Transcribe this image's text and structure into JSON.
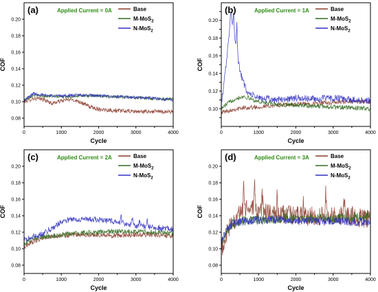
{
  "colors": {
    "base": "#8a3a2a",
    "m_mos2": "#2f6b1e",
    "n_mos2": "#3030c0",
    "annotation": "#2d8a12"
  },
  "chart_data": [
    {
      "type": "line",
      "label": "(a)",
      "annotation": "Applied Current = 0A",
      "xlabel": "Cycle",
      "ylabel": "COF",
      "xlim": [
        0,
        4000
      ],
      "ylim": [
        0.07,
        0.22
      ],
      "xticks": [
        0,
        1000,
        2000,
        3000,
        4000
      ],
      "yticks": [
        0.08,
        0.1,
        0.12,
        0.14,
        0.16,
        0.18,
        0.2
      ],
      "ytick_labels": [
        "0.08",
        "0.10",
        "0.12",
        "0.14",
        "0.16",
        "0.18",
        "0.20"
      ],
      "legend_position": "top-right",
      "series": [
        {
          "name": "Base",
          "sub": "",
          "x": [
            0,
            250,
            500,
            750,
            1000,
            1250,
            1500,
            1750,
            2000,
            2500,
            3000,
            3500,
            4000
          ],
          "y": [
            0.1,
            0.104,
            0.103,
            0.098,
            0.101,
            0.103,
            0.1,
            0.094,
            0.091,
            0.089,
            0.088,
            0.088,
            0.088
          ],
          "noise": 0.0025,
          "spikes": []
        },
        {
          "name": "M-MoS",
          "sub": "2",
          "x": [
            0,
            250,
            500,
            1000,
            1500,
            2000,
            2500,
            3000,
            3500,
            4000
          ],
          "y": [
            0.102,
            0.108,
            0.107,
            0.106,
            0.107,
            0.107,
            0.106,
            0.105,
            0.104,
            0.103
          ],
          "noise": 0.0018,
          "spikes": []
        },
        {
          "name": "N-MoS",
          "sub": "2",
          "x": [
            0,
            250,
            500,
            1000,
            1500,
            2000,
            2500,
            3000,
            3500,
            4000
          ],
          "y": [
            0.101,
            0.11,
            0.108,
            0.107,
            0.108,
            0.107,
            0.106,
            0.105,
            0.104,
            0.102
          ],
          "noise": 0.002,
          "spikes": []
        }
      ]
    },
    {
      "type": "line",
      "label": "(b)",
      "annotation": "Applied Current = 1A",
      "xlabel": "Cycle",
      "ylabel": "COF",
      "xlim": [
        0,
        4000
      ],
      "ylim": [
        0.08,
        0.22
      ],
      "xticks": [
        0,
        1000,
        2000,
        3000,
        4000
      ],
      "yticks": [
        0.09,
        0.1,
        0.11,
        0.12,
        0.13,
        0.14,
        0.15,
        0.16,
        0.17,
        0.18,
        0.19,
        0.2,
        0.21
      ],
      "ytick_labels": [
        "",
        "0.10",
        "",
        "0.12",
        "",
        "0.14",
        "",
        "0.16",
        "",
        "0.18",
        "",
        "0.20",
        ""
      ],
      "legend_position": "top-right",
      "series": [
        {
          "name": "Base",
          "sub": "",
          "x": [
            0,
            300,
            600,
            1000,
            1500,
            2000,
            2500,
            3000,
            3500,
            4000
          ],
          "y": [
            0.096,
            0.099,
            0.101,
            0.102,
            0.104,
            0.105,
            0.106,
            0.107,
            0.108,
            0.108
          ],
          "noise": 0.0025,
          "spikes": []
        },
        {
          "name": "M-MoS",
          "sub": "2",
          "x": [
            0,
            200,
            400,
            600,
            800,
            1000,
            1500,
            2000,
            2500,
            3000,
            3500,
            4000
          ],
          "y": [
            0.1,
            0.107,
            0.112,
            0.114,
            0.111,
            0.108,
            0.105,
            0.104,
            0.103,
            0.102,
            0.101,
            0.1
          ],
          "noise": 0.0025,
          "spikes": []
        },
        {
          "name": "N-MoS",
          "sub": "2",
          "x": [
            0,
            100,
            200,
            250,
            300,
            350,
            400,
            450,
            550,
            700,
            1000,
            1500,
            2000,
            2500,
            3000,
            3500,
            4000
          ],
          "y": [
            0.104,
            0.14,
            0.18,
            0.2,
            0.195,
            0.185,
            0.17,
            0.15,
            0.135,
            0.118,
            0.112,
            0.11,
            0.112,
            0.111,
            0.112,
            0.11,
            0.109
          ],
          "noise": 0.004,
          "spikes": [
            [
              260,
              0.213
            ],
            [
              330,
              0.21
            ],
            [
              420,
              0.2
            ],
            [
              470,
              0.16
            ]
          ]
        }
      ]
    },
    {
      "type": "line",
      "label": "(c)",
      "annotation": "Applied Current = 2A",
      "xlabel": "Cycle",
      "ylabel": "COF",
      "xlim": [
        0,
        4000
      ],
      "ylim": [
        0.07,
        0.22
      ],
      "xticks": [
        0,
        1000,
        2000,
        3000,
        4000
      ],
      "yticks": [
        0.08,
        0.1,
        0.12,
        0.14,
        0.16,
        0.18,
        0.2
      ],
      "ytick_labels": [
        "0.08",
        "0.10",
        "0.12",
        "0.14",
        "0.16",
        "0.18",
        "0.20"
      ],
      "legend_position": "top-right",
      "series": [
        {
          "name": "Base",
          "sub": "",
          "x": [
            0,
            200,
            500,
            1000,
            1500,
            2000,
            2500,
            3000,
            3500,
            4000
          ],
          "y": [
            0.102,
            0.108,
            0.113,
            0.116,
            0.117,
            0.117,
            0.116,
            0.117,
            0.117,
            0.116
          ],
          "noise": 0.003,
          "spikes": []
        },
        {
          "name": "M-MoS",
          "sub": "2",
          "x": [
            0,
            200,
            500,
            1000,
            1500,
            2000,
            2500,
            3000,
            3500,
            4000
          ],
          "y": [
            0.106,
            0.111,
            0.114,
            0.117,
            0.119,
            0.12,
            0.121,
            0.121,
            0.12,
            0.119
          ],
          "noise": 0.003,
          "spikes": []
        },
        {
          "name": "N-MoS",
          "sub": "2",
          "x": [
            0,
            200,
            500,
            800,
            1000,
            1200,
            1500,
            2000,
            2500,
            3000,
            3500,
            4000
          ],
          "y": [
            0.11,
            0.114,
            0.118,
            0.126,
            0.133,
            0.135,
            0.136,
            0.135,
            0.133,
            0.128,
            0.126,
            0.124
          ],
          "noise": 0.0035,
          "spikes": [
            [
              2600,
              0.14
            ],
            [
              2900,
              0.142
            ],
            [
              3100,
              0.138
            ],
            [
              3300,
              0.135
            ]
          ]
        }
      ]
    },
    {
      "type": "line",
      "label": "(d)",
      "annotation": "Applied Current = 3A",
      "xlabel": "Cycle",
      "ylabel": "COF",
      "xlim": [
        0,
        4000
      ],
      "ylim": [
        0.07,
        0.22
      ],
      "xticks": [
        0,
        1000,
        2000,
        3000,
        4000
      ],
      "yticks": [
        0.08,
        0.1,
        0.12,
        0.14,
        0.16,
        0.18,
        0.2
      ],
      "ytick_labels": [
        "0.08",
        "0.10",
        "0.12",
        "0.14",
        "0.16",
        "0.18",
        "0.20"
      ],
      "legend_position": "top-right",
      "series": [
        {
          "name": "Base",
          "sub": "",
          "x": [
            0,
            150,
            300,
            500,
            700,
            900,
            1100,
            1500,
            2000,
            2500,
            3000,
            3500,
            4000
          ],
          "y": [
            0.098,
            0.118,
            0.133,
            0.142,
            0.15,
            0.146,
            0.143,
            0.142,
            0.14,
            0.139,
            0.14,
            0.14,
            0.135
          ],
          "noise": 0.012,
          "spikes": [
            [
              600,
              0.175
            ],
            [
              900,
              0.188
            ],
            [
              1100,
              0.18
            ],
            [
              1500,
              0.172
            ],
            [
              2200,
              0.168
            ],
            [
              2800,
              0.174
            ],
            [
              3300,
              0.166
            ]
          ]
        },
        {
          "name": "M-MoS",
          "sub": "2",
          "x": [
            0,
            150,
            300,
            500,
            800,
            1200,
            1600,
            2000,
            2500,
            3000,
            3500,
            4000
          ],
          "y": [
            0.106,
            0.122,
            0.13,
            0.133,
            0.134,
            0.135,
            0.136,
            0.137,
            0.137,
            0.136,
            0.138,
            0.14
          ],
          "noise": 0.006,
          "spikes": []
        },
        {
          "name": "N-MoS",
          "sub": "2",
          "x": [
            0,
            150,
            300,
            500,
            800,
            1200,
            1600,
            2000,
            2500,
            3000,
            3500,
            4000
          ],
          "y": [
            0.108,
            0.124,
            0.13,
            0.133,
            0.134,
            0.135,
            0.135,
            0.135,
            0.134,
            0.134,
            0.133,
            0.132
          ],
          "noise": 0.005,
          "spikes": []
        }
      ]
    }
  ]
}
